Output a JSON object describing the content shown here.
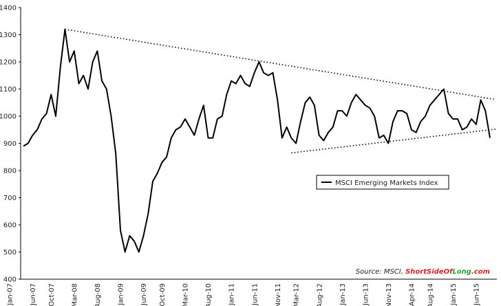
{
  "chart_data": {
    "type": "line",
    "categories": [
      "Jan-07",
      null,
      null,
      null,
      null,
      "Jun-07",
      null,
      null,
      null,
      "Oct-07",
      null,
      null,
      null,
      null,
      "Mar-08",
      null,
      null,
      null,
      null,
      "Aug-08",
      null,
      null,
      null,
      null,
      "Jan-09",
      null,
      null,
      null,
      null,
      "Jun-09",
      null,
      null,
      null,
      "Oct-09",
      null,
      null,
      null,
      null,
      "Mar-10",
      null,
      null,
      null,
      null,
      "Aug-10",
      null,
      null,
      null,
      null,
      "Jan-11",
      null,
      null,
      null,
      null,
      "Jun-11",
      null,
      null,
      null,
      null,
      "Nov-11",
      null,
      null,
      null,
      "Mar-12",
      null,
      null,
      null,
      null,
      "Aug-12",
      null,
      null,
      null,
      null,
      "Jan-13",
      null,
      null,
      null,
      null,
      "Jun-13",
      null,
      null,
      null,
      null,
      "Nov-13",
      null,
      null,
      null,
      null,
      "Apr-14",
      null,
      null,
      null,
      "Aug-14",
      null,
      null,
      null,
      null,
      "Jan-15",
      null,
      null,
      null,
      null,
      "Jun-15"
    ],
    "series": [
      {
        "name": "MSCI Emerging Markets Index",
        "color": "#000000",
        "values": [
          890,
          900,
          930,
          950,
          990,
          1010,
          1080,
          1000,
          1180,
          1320,
          1200,
          1240,
          1120,
          1150,
          1100,
          1200,
          1240,
          1130,
          1100,
          1000,
          860,
          580,
          500,
          560,
          540,
          500,
          560,
          640,
          760,
          790,
          830,
          850,
          920,
          950,
          960,
          990,
          960,
          930,
          990,
          1040,
          920,
          920,
          990,
          1000,
          1080,
          1130,
          1120,
          1150,
          1120,
          1110,
          1160,
          1200,
          1160,
          1150,
          1160,
          1060,
          920,
          960,
          920,
          900,
          980,
          1050,
          1070,
          1040,
          930,
          910,
          940,
          960,
          1020,
          1020,
          1000,
          1050,
          1080,
          1060,
          1040,
          1030,
          1000,
          920,
          930,
          900,
          980,
          1020,
          1020,
          1010,
          950,
          940,
          980,
          1000,
          1040,
          1060,
          1080,
          1100,
          1010,
          990,
          990,
          950,
          960,
          990,
          970,
          1060,
          1020,
          920
        ]
      }
    ],
    "trend_lines": [
      {
        "from": "Oct-07",
        "to": "Jun-15",
        "values": [
          1320,
          1065
        ]
      },
      {
        "from": "Nov-11",
        "to": "Jun-15",
        "values": [
          865,
          950
        ]
      }
    ],
    "ylim": [
      400,
      1400
    ],
    "yticks": [
      400,
      500,
      600,
      700,
      800,
      900,
      1000,
      1100,
      1200,
      1300,
      1400
    ],
    "grid": false,
    "source_prefix": "Source: MSCI,",
    "source_site": [
      {
        "text": "ShortSideOf",
        "color": "#d62020"
      },
      {
        "text": "Long",
        "color": "#2e9e2e"
      },
      {
        "text": ".com",
        "color": "#d62020"
      }
    ]
  }
}
